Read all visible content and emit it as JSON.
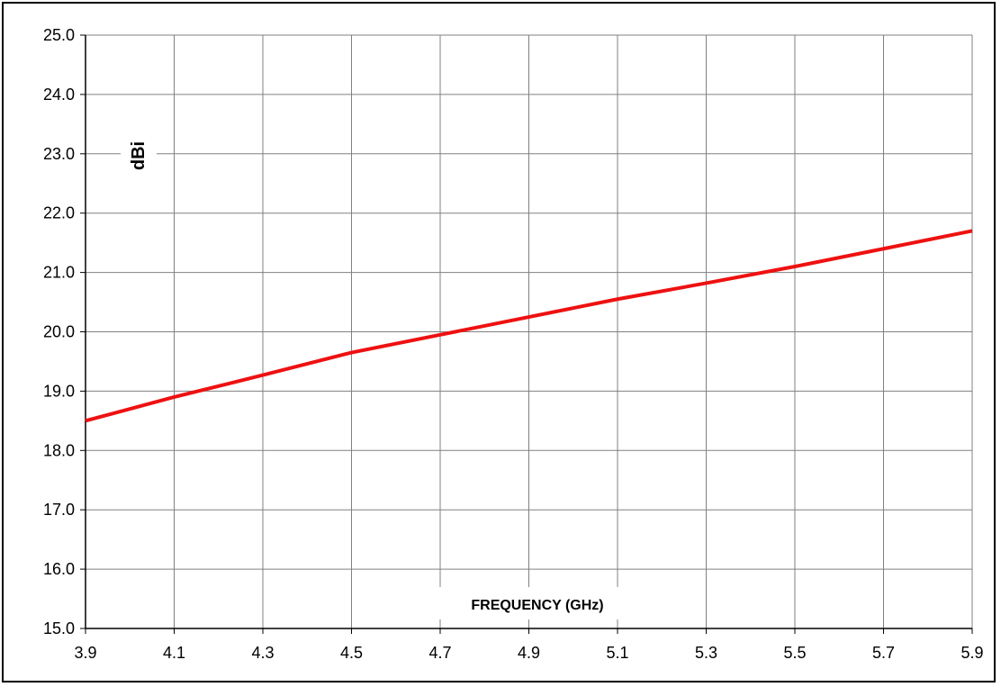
{
  "chart_data": {
    "type": "line",
    "xlabel": "FREQUENCY (GHz)",
    "ylabel": "dBi",
    "xlim": [
      3.9,
      5.9
    ],
    "ylim": [
      15.0,
      25.0
    ],
    "x_ticks": [
      "3.9",
      "4.1",
      "4.3",
      "4.5",
      "4.7",
      "4.9",
      "5.1",
      "5.3",
      "5.5",
      "5.7",
      "5.9"
    ],
    "y_ticks": [
      "15.0",
      "16.0",
      "17.0",
      "18.0",
      "19.0",
      "20.0",
      "21.0",
      "22.0",
      "23.0",
      "24.0",
      "25.0"
    ],
    "grid": true,
    "series": [
      {
        "color": "#ee1111",
        "x": [
          3.9,
          4.1,
          4.3,
          4.5,
          4.7,
          4.9,
          5.1,
          5.3,
          5.5,
          5.7,
          5.9
        ],
        "y": [
          18.5,
          18.9,
          19.27,
          19.65,
          19.95,
          20.25,
          20.55,
          20.82,
          21.1,
          21.4,
          21.7
        ]
      }
    ]
  }
}
